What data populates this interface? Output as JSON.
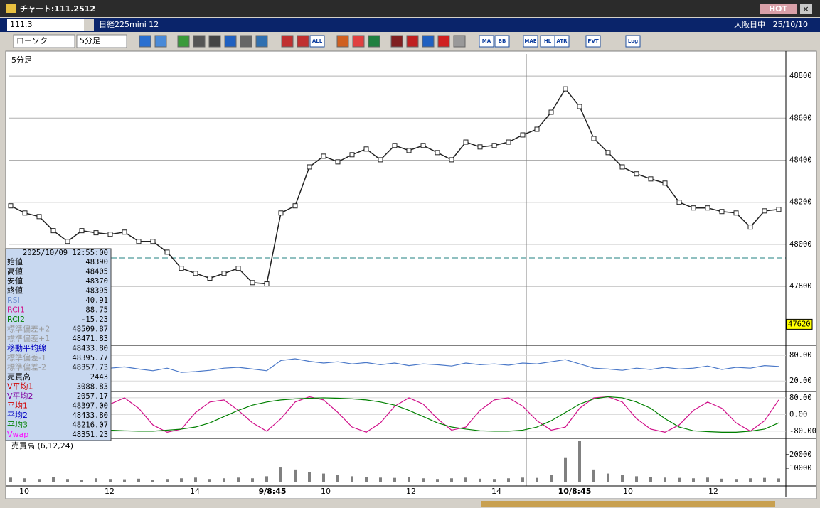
{
  "window": {
    "title": "チャート:111.2512",
    "hot": "HOT"
  },
  "header": {
    "code": "111.3",
    "name": "日経225mini 12",
    "market": "大阪日中",
    "date": "25/10/10"
  },
  "toolbar": {
    "chart_type": "ローソク",
    "interval": "5分足",
    "buttons": [
      "ALL",
      "MA",
      "BB",
      "MAE",
      "HL",
      "ATR",
      "PVT",
      "Log"
    ]
  },
  "chart": {
    "label": "5分足",
    "ylim": [
      47520,
      48905
    ],
    "yticks": [
      47800,
      48000,
      48200,
      48400,
      48600,
      48800
    ],
    "color": "#202020",
    "close": [
      48183,
      48149,
      48132,
      48065,
      48014,
      48065,
      48055,
      48048,
      48058,
      48014,
      48014,
      47963,
      47886,
      47862,
      47839,
      47862,
      47886,
      47818,
      47812,
      48149,
      48183,
      48368,
      48419,
      48392,
      48426,
      48453,
      48402,
      48470,
      48446,
      48470,
      48436,
      48402,
      48486,
      48463,
      48470,
      48486,
      48520,
      48547,
      48628,
      48739,
      48655,
      48503,
      48436,
      48368,
      48335,
      48311,
      48291,
      48200,
      48173,
      48173,
      48156,
      48149,
      48082,
      48159,
      48166
    ],
    "price_marker": 47620,
    "x_labels": [
      "10",
      "12",
      "14",
      "9/8:45",
      "10",
      "12",
      "14",
      "10/8:45",
      "10",
      "12"
    ],
    "rsi": {
      "ylim": [
        -3,
        102
      ],
      "yticks": [
        {
          "value": 80,
          "label": "80.00"
        },
        {
          "value": 20,
          "label": "20.00"
        }
      ],
      "color": "#4a78c8",
      "values": [
        55,
        52,
        45,
        48,
        50,
        46,
        52,
        50,
        53,
        48,
        44,
        50,
        40,
        42,
        45,
        50,
        52,
        48,
        44,
        68,
        72,
        66,
        62,
        65,
        60,
        63,
        58,
        62,
        56,
        60,
        58,
        55,
        62,
        58,
        60,
        57,
        62,
        60,
        65,
        70,
        60,
        50,
        48,
        45,
        50,
        47,
        52,
        48,
        50,
        55,
        47,
        52,
        50,
        56,
        54
      ]
    },
    "rci": {
      "ylim": [
        -111,
        107
      ],
      "yticks": [
        {
          "value": 80,
          "label": "80.00"
        },
        {
          "value": 0,
          "label": "0.00"
        },
        {
          "value": -80,
          "label": "-80.00"
        }
      ],
      "series": [
        {
          "name": "RCI1",
          "color": "#d0108a",
          "values": [
            -60,
            20,
            80,
            40,
            -40,
            -80,
            -30,
            50,
            80,
            30,
            -50,
            -85,
            -70,
            10,
            60,
            70,
            20,
            -40,
            -80,
            -20,
            60,
            85,
            70,
            10,
            -60,
            -85,
            -40,
            40,
            80,
            50,
            -20,
            -75,
            -60,
            20,
            70,
            80,
            40,
            -30,
            -75,
            -60,
            30,
            80,
            85,
            60,
            -20,
            -70,
            -85,
            -50,
            20,
            60,
            30,
            -40,
            -80,
            -30,
            70
          ]
        },
        {
          "name": "RCI2",
          "color": "#008000",
          "values": [
            -70,
            -60,
            -50,
            -55,
            -60,
            -65,
            -70,
            -75,
            -78,
            -80,
            -80,
            -75,
            -70,
            -60,
            -40,
            -10,
            20,
            45,
            60,
            70,
            75,
            78,
            80,
            78,
            75,
            70,
            60,
            45,
            20,
            -10,
            -40,
            -60,
            -70,
            -78,
            -80,
            -80,
            -75,
            -60,
            -30,
            10,
            50,
            75,
            85,
            80,
            60,
            30,
            -20,
            -60,
            -78,
            -82,
            -85,
            -85,
            -80,
            -70,
            -40
          ]
        }
      ]
    },
    "volume": {
      "label": "売買高 (6,12,24)",
      "ylim": [
        0,
        31500
      ],
      "yticks": [
        20000,
        10000
      ],
      "color": "#808080",
      "values": [
        3000,
        2500,
        2000,
        3500,
        2000,
        1500,
        2500,
        2000,
        1800,
        2200,
        1500,
        2000,
        2500,
        3000,
        2000,
        2500,
        3000,
        2500,
        4000,
        11000,
        9000,
        7000,
        6000,
        5000,
        4000,
        3500,
        3000,
        2800,
        3200,
        2500,
        2000,
        2500,
        3000,
        2200,
        2000,
        2500,
        3000,
        2800,
        5000,
        18000,
        30000,
        9000,
        6000,
        5000,
        4000,
        3500,
        3000,
        2800,
        2500,
        3000,
        2200,
        2000,
        2500,
        2800,
        2400
      ]
    }
  },
  "info": {
    "datetime": "2025/10/09 12:55:00",
    "rows": [
      {
        "label": "始値",
        "value": "48390",
        "color": "#000000"
      },
      {
        "label": "高値",
        "value": "48405",
        "color": "#000000"
      },
      {
        "label": "安値",
        "value": "48370",
        "color": "#000000"
      },
      {
        "label": "終値",
        "value": "48395",
        "color": "#000000"
      },
      {
        "label": "RSI",
        "value": "40.91",
        "color": "#6f8fcf"
      },
      {
        "label": "RCI1",
        "value": "-88.75",
        "color": "#d0108a"
      },
      {
        "label": "RCI2",
        "value": "-15.23",
        "color": "#008000"
      },
      {
        "label": "標準偏差+2",
        "value": "48509.87",
        "color": "#999999"
      },
      {
        "label": "標準偏差+1",
        "value": "48471.83",
        "color": "#999999"
      },
      {
        "label": "移動平均線",
        "value": "48433.80",
        "color": "#0000c0"
      },
      {
        "label": "標準偏差-1",
        "value": "48395.77",
        "color": "#999999"
      },
      {
        "label": "標準偏差-2",
        "value": "48357.73",
        "color": "#999999"
      },
      {
        "label": "売買高",
        "value": "2443",
        "color": "#000000"
      },
      {
        "label": "V平均1",
        "value": "3088.83",
        "color": "#d00000"
      },
      {
        "label": "V平均2",
        "value": "2057.17",
        "color": "#8000a0"
      },
      {
        "label": "平均1",
        "value": "48397.00",
        "color": "#d00000"
      },
      {
        "label": "平均2",
        "value": "48433.80",
        "color": "#0000c0"
      },
      {
        "label": "平均3",
        "value": "48216.07",
        "color": "#008000"
      },
      {
        "label": "Vwap",
        "value": "48351.23",
        "color": "#ff00ff"
      }
    ]
  }
}
